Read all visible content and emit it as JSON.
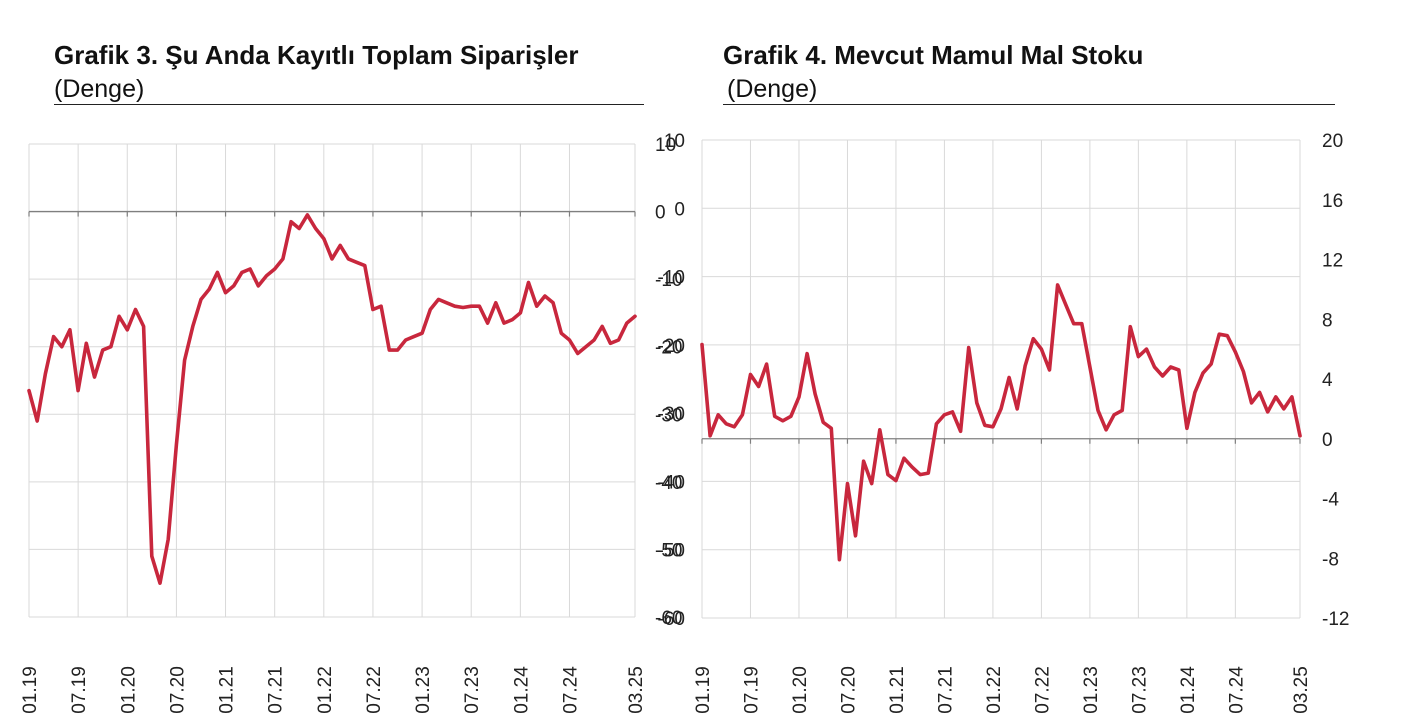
{
  "chart_data": [
    {
      "type": "line",
      "title": "Grafik 3. Şu Anda Kayıtlı Toplam Siparişler",
      "subtitle": "(Denge)",
      "ylim": [
        -60,
        10
      ],
      "y_ticks": [
        "10",
        "0",
        "-10",
        "-20",
        "-30",
        "-40",
        "-50",
        "-60"
      ],
      "y_axis_side": "right",
      "x_ticks": [
        "01.19",
        "07.19",
        "01.20",
        "07.20",
        "01.21",
        "07.21",
        "01.22",
        "07.22",
        "01.23",
        "07.23",
        "01.24",
        "07.24",
        "03.25"
      ],
      "grid": true,
      "color": "#c8273d",
      "series": [
        {
          "values": [
            -26.5,
            -31,
            -24,
            -18.5,
            -20,
            -17.5,
            -26.5,
            -19.5,
            -24.5,
            -20.5,
            -20,
            -15.5,
            -17.5,
            -14.5,
            -17,
            -51,
            -55,
            -48.5,
            -34.5,
            -22,
            -17,
            -13,
            -11.5,
            -9,
            -12,
            -11,
            -9,
            -8.5,
            -11,
            -9.5,
            -8.5,
            -7,
            -1.5,
            -2.5,
            -0.5,
            -2.5,
            -4,
            -7,
            -5,
            -7,
            -7.5,
            -8,
            -14.5,
            -14,
            -20.5,
            -20.5,
            -19,
            -18.5,
            -18,
            -14.5,
            -13,
            -13.5,
            -14,
            -14.2,
            -14,
            -14,
            -16.5,
            -13.5,
            -16.5,
            -16,
            -15,
            -10.5,
            -14,
            -12.5,
            -13.5,
            -18,
            -19,
            -21,
            -20,
            -19,
            -17,
            -19.5,
            -19,
            -16.5,
            -15.5
          ]
        }
      ]
    },
    {
      "type": "line",
      "title": "Grafik 4. Mevcut Mamul Mal Stoku",
      "subtitle": "(Denge)",
      "ylim": [
        -60,
        10
      ],
      "y2lim": [
        -12,
        20
      ],
      "y_ticks": [
        "10",
        "0",
        "-10",
        "-20",
        "-30",
        "-40",
        "-50",
        "-60"
      ],
      "y2_ticks": [
        "20",
        "16",
        "12",
        "8",
        "4",
        "0",
        "-4",
        "-8",
        "-12"
      ],
      "x_ticks": [
        "01.19",
        "07.19",
        "01.20",
        "07.20",
        "01.21",
        "07.21",
        "01.22",
        "07.22",
        "01.23",
        "07.23",
        "01.24",
        "07.24",
        "03.25"
      ],
      "grid": true,
      "color": "#c8273d",
      "series": [
        {
          "axis": "right",
          "values": [
            6.3,
            0.2,
            1.6,
            1.0,
            0.8,
            1.6,
            4.3,
            3.5,
            5.0,
            1.5,
            1.2,
            1.5,
            2.8,
            5.7,
            3.0,
            1.1,
            0.7,
            -8.1,
            -3.0,
            -6.5,
            -1.5,
            -3.0,
            0.6,
            -2.4,
            -2.8,
            -1.3,
            -1.9,
            -2.4,
            -2.3,
            1.0,
            1.6,
            1.8,
            0.5,
            6.1,
            2.4,
            0.9,
            0.8,
            2.0,
            4.1,
            2.0,
            4.9,
            6.7,
            6.0,
            4.6,
            10.3,
            9.0,
            7.7,
            7.7,
            4.8,
            1.9,
            0.6,
            1.6,
            1.9,
            7.5,
            5.5,
            6.0,
            4.8,
            4.2,
            4.8,
            4.6,
            0.7,
            3.1,
            4.4,
            5.0,
            7.0,
            6.9,
            5.8,
            4.5,
            2.4,
            3.1,
            1.8,
            2.8,
            2.0,
            2.8,
            0.2
          ]
        }
      ]
    }
  ]
}
